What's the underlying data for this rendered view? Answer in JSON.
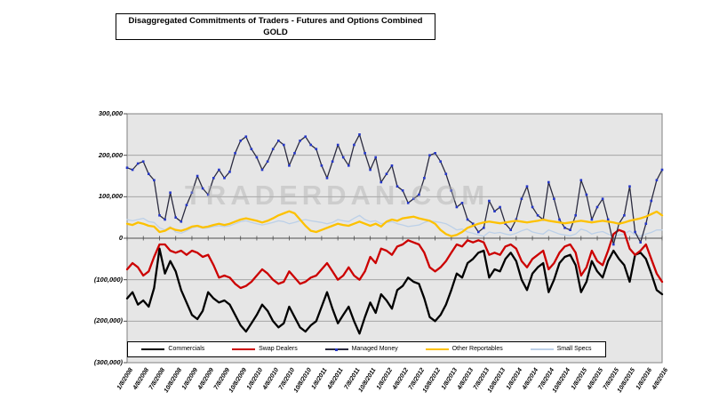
{
  "title_box": {
    "line1": "Disaggregated Commitments of Traders - Futures and Options Combined",
    "line2": "GOLD"
  },
  "watermark": "TRADERDAN.COM",
  "colors": {
    "plot_background": "#e6e6e6",
    "gridline": "#9b9b9b",
    "plot_border": "#808080",
    "zero_axis": "#4d4d4d"
  },
  "chart_data": {
    "type": "line",
    "title": "Disaggregated Commitments of Traders - Futures and Options Combined GOLD",
    "xlabel": "",
    "ylabel": "",
    "ylim": [
      -300000,
      300000
    ],
    "grid": true,
    "legend_position": "bottom",
    "y_ticks": [
      {
        "label": "300,000",
        "value": 300000
      },
      {
        "label": "200,000",
        "value": 200000
      },
      {
        "label": "100,000",
        "value": 100000
      },
      {
        "label": "0",
        "value": 0
      },
      {
        "label": "(100,000)",
        "value": -100000
      },
      {
        "label": "(200,000)",
        "value": -200000
      },
      {
        "label": "(300,000)",
        "value": -300000
      }
    ],
    "x_tick_labels": [
      "1/8/2008",
      "4/8/2008",
      "7/8/2008",
      "10/8/2008",
      "1/8/2009",
      "4/8/2009",
      "7/8/2009",
      "10/8/2009",
      "1/8/2010",
      "4/8/2010",
      "7/8/2010",
      "10/8/2010",
      "1/8/2011",
      "4/8/2011",
      "7/8/2011",
      "10/8/2011",
      "1/8/2012",
      "4/8/2012",
      "7/8/2012",
      "10/8/2012",
      "1/8/2013",
      "4/8/2013",
      "7/8/2013",
      "10/8/2013",
      "1/8/2014",
      "4/8/2014",
      "7/8/2014",
      "10/8/2014",
      "1/8/2015",
      "4/8/2015",
      "7/8/2015",
      "10/8/2015",
      "1/8/2016",
      "4/8/2016"
    ],
    "x_range_note": "monthly samples Jan 2008 - Apr 2016",
    "series": [
      {
        "name": "Commercials",
        "color": "#000000",
        "width": 2.3,
        "markers": false,
        "values": [
          -145000,
          -130000,
          -160000,
          -150000,
          -165000,
          -120000,
          -25000,
          -85000,
          -55000,
          -80000,
          -125000,
          -155000,
          -185000,
          -195000,
          -175000,
          -130000,
          -145000,
          -155000,
          -150000,
          -160000,
          -185000,
          -210000,
          -225000,
          -205000,
          -185000,
          -160000,
          -175000,
          -200000,
          -215000,
          -205000,
          -165000,
          -190000,
          -215000,
          -225000,
          -210000,
          -200000,
          -165000,
          -130000,
          -170000,
          -205000,
          -185000,
          -165000,
          -200000,
          -230000,
          -190000,
          -155000,
          -180000,
          -135000,
          -150000,
          -170000,
          -125000,
          -115000,
          -95000,
          -105000,
          -110000,
          -145000,
          -190000,
          -200000,
          -185000,
          -160000,
          -125000,
          -85000,
          -95000,
          -60000,
          -50000,
          -35000,
          -30000,
          -95000,
          -75000,
          -80000,
          -50000,
          -35000,
          -55000,
          -100000,
          -125000,
          -85000,
          -70000,
          -60000,
          -130000,
          -100000,
          -60000,
          -45000,
          -40000,
          -65000,
          -130000,
          -105000,
          -55000,
          -80000,
          -95000,
          -55000,
          -30000,
          -50000,
          -65000,
          -105000,
          -40000,
          -35000,
          -50000,
          -85000,
          -125000,
          -135000
        ]
      },
      {
        "name": "Swap Dealers",
        "color": "#cc0000",
        "width": 2.3,
        "markers": false,
        "values": [
          -75000,
          -60000,
          -70000,
          -90000,
          -80000,
          -45000,
          -15000,
          -15000,
          -30000,
          -35000,
          -30000,
          -40000,
          -30000,
          -35000,
          -45000,
          -40000,
          -65000,
          -95000,
          -90000,
          -95000,
          -110000,
          -120000,
          -115000,
          -105000,
          -90000,
          -75000,
          -85000,
          -100000,
          -110000,
          -105000,
          -80000,
          -95000,
          -110000,
          -105000,
          -95000,
          -90000,
          -75000,
          -60000,
          -80000,
          -100000,
          -90000,
          -70000,
          -90000,
          -100000,
          -80000,
          -45000,
          -60000,
          -25000,
          -30000,
          -40000,
          -20000,
          -15000,
          -5000,
          -10000,
          -15000,
          -35000,
          -70000,
          -80000,
          -70000,
          -55000,
          -35000,
          -15000,
          -20000,
          -5000,
          -10000,
          -5000,
          -10000,
          -40000,
          -35000,
          -40000,
          -20000,
          -15000,
          -25000,
          -55000,
          -70000,
          -50000,
          -40000,
          -30000,
          -75000,
          -60000,
          -35000,
          -20000,
          -15000,
          -35000,
          -90000,
          -70000,
          -30000,
          -55000,
          -65000,
          -30000,
          10000,
          20000,
          15000,
          -25000,
          -40000,
          -30000,
          -15000,
          -50000,
          -85000,
          -105000
        ]
      },
      {
        "name": "Managed Money",
        "color": "#2b2b3f",
        "marker_color": "#2436c7",
        "width": 1.3,
        "markers": true,
        "values": [
          170000,
          165000,
          180000,
          185000,
          155000,
          140000,
          55000,
          45000,
          110000,
          50000,
          40000,
          80000,
          110000,
          150000,
          120000,
          105000,
          145000,
          165000,
          145000,
          160000,
          205000,
          235000,
          245000,
          215000,
          195000,
          165000,
          185000,
          215000,
          235000,
          225000,
          175000,
          205000,
          235000,
          245000,
          225000,
          215000,
          175000,
          145000,
          185000,
          225000,
          195000,
          175000,
          225000,
          250000,
          205000,
          165000,
          195000,
          135000,
          155000,
          175000,
          125000,
          115000,
          85000,
          95000,
          105000,
          145000,
          200000,
          205000,
          185000,
          155000,
          115000,
          75000,
          85000,
          45000,
          35000,
          15000,
          25000,
          90000,
          65000,
          75000,
          35000,
          20000,
          45000,
          95000,
          125000,
          75000,
          55000,
          45000,
          135000,
          95000,
          45000,
          25000,
          20000,
          55000,
          140000,
          105000,
          45000,
          75000,
          95000,
          45000,
          -15000,
          35000,
          55000,
          125000,
          15000,
          -10000,
          35000,
          90000,
          140000,
          165000
        ]
      },
      {
        "name": "Other Reportables",
        "color": "#fdc100",
        "width": 2.3,
        "markers": false,
        "values": [
          35000,
          32000,
          38000,
          35000,
          30000,
          28000,
          15000,
          18000,
          25000,
          20000,
          18000,
          22000,
          28000,
          30000,
          26000,
          28000,
          32000,
          35000,
          32000,
          35000,
          40000,
          45000,
          48000,
          45000,
          42000,
          38000,
          42000,
          48000,
          55000,
          60000,
          65000,
          60000,
          45000,
          30000,
          18000,
          15000,
          20000,
          25000,
          30000,
          35000,
          32000,
          30000,
          35000,
          40000,
          35000,
          30000,
          35000,
          28000,
          40000,
          45000,
          42000,
          48000,
          50000,
          52000,
          48000,
          45000,
          42000,
          35000,
          20000,
          10000,
          5000,
          8000,
          15000,
          25000,
          30000,
          35000,
          38000,
          40000,
          38000,
          36000,
          38000,
          40000,
          42000,
          40000,
          38000,
          40000,
          42000,
          45000,
          42000,
          40000,
          38000,
          36000,
          38000,
          40000,
          42000,
          40000,
          38000,
          40000,
          42000,
          40000,
          38000,
          35000,
          38000,
          42000,
          45000,
          48000,
          52000,
          58000,
          64000,
          55000
        ]
      },
      {
        "name": "Small Specs",
        "color": "#bcd0e8",
        "width": 1.3,
        "markers": false,
        "values": [
          45000,
          42000,
          45000,
          48000,
          40000,
          38000,
          25000,
          20000,
          28000,
          15000,
          12000,
          18000,
          25000,
          28000,
          24000,
          25000,
          28000,
          30000,
          28000,
          30000,
          35000,
          40000,
          42000,
          38000,
          35000,
          32000,
          35000,
          38000,
          42000,
          40000,
          35000,
          38000,
          42000,
          45000,
          42000,
          40000,
          38000,
          35000,
          38000,
          45000,
          42000,
          40000,
          48000,
          55000,
          45000,
          40000,
          42000,
          35000,
          38000,
          40000,
          35000,
          32000,
          28000,
          30000,
          32000,
          38000,
          42000,
          40000,
          38000,
          35000,
          28000,
          20000,
          22000,
          15000,
          12000,
          8000,
          5000,
          15000,
          12000,
          14000,
          10000,
          8000,
          12000,
          18000,
          22000,
          15000,
          12000,
          10000,
          20000,
          15000,
          10000,
          8000,
          6000,
          10000,
          22000,
          18000,
          10000,
          14000,
          16000,
          10000,
          5000,
          8000,
          10000,
          18000,
          8000,
          5000,
          10000,
          14000,
          20000,
          20000
        ]
      }
    ]
  }
}
